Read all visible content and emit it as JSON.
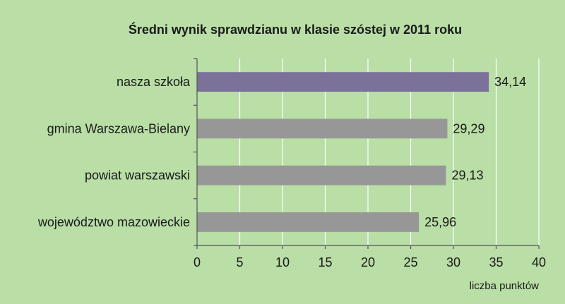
{
  "chart_data": {
    "type": "bar",
    "orientation": "horizontal",
    "title": "Średni wynik sprawdzianu w klasie szóstej w 2011 roku",
    "xlabel": "liczba punktów",
    "ylabel": "",
    "categories": [
      "nasza szkoła",
      "gmina Warszawa-Bielany",
      "powiat warszawski",
      "województwo mazowieckie"
    ],
    "values": [
      34.14,
      29.29,
      29.13,
      25.96
    ],
    "value_labels": [
      "34,14",
      "29,29",
      "29,13",
      "25,96"
    ],
    "xlim": [
      0,
      40
    ],
    "ticks": [
      0,
      5,
      10,
      15,
      20,
      25,
      30,
      35,
      40
    ],
    "tick_labels": [
      "0",
      "5",
      "10",
      "15",
      "20",
      "25",
      "30",
      "35",
      "40"
    ],
    "grid": "vertical",
    "legend": "none",
    "colors": {
      "background": "#b9dea6",
      "highlight_bar": "#7b7199",
      "bar": "#979797",
      "grid": "#ffffff",
      "axis": "#555555",
      "text": "#1a1a1a"
    }
  }
}
